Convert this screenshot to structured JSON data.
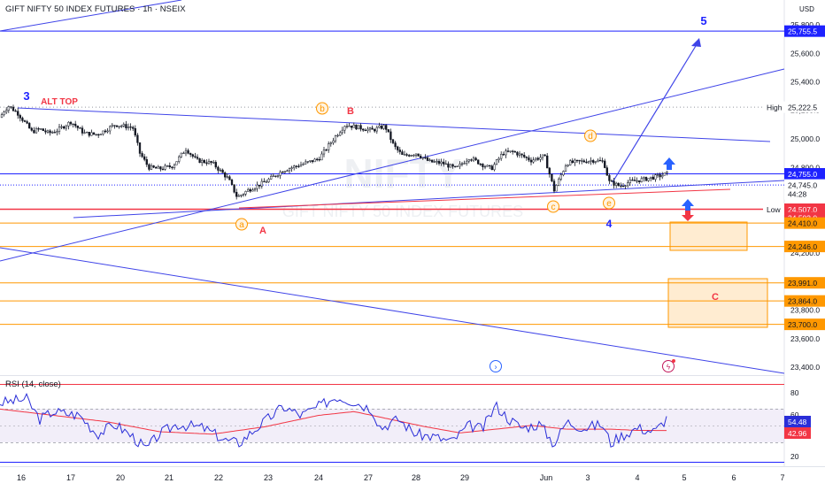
{
  "header": {
    "title": "GIFT NIFTY 50 INDEX FUTURES · 1h · NSEIX",
    "currency": "USD",
    "watermark": "NIFTY",
    "watermark_sub": "GIFT NIFTY 50 INDEX FUTURES"
  },
  "rsi": {
    "label": "RSI (14, close)",
    "value": 54.48,
    "ma_value": 42.96,
    "levels": [
      80,
      60,
      40,
      20
    ],
    "band": [
      30,
      70
    ]
  },
  "chart_data": {
    "type": "candlestick",
    "x_axis": {
      "ticks": [
        "16",
        "17",
        "20",
        "21",
        "22",
        "23",
        "24",
        "27",
        "28",
        "29",
        "Jun",
        "3",
        "4",
        "5",
        "6",
        "7"
      ]
    },
    "y_axis": {
      "range": [
        23300,
        25900
      ],
      "ticks": [
        "25,800.0",
        "25,600.0",
        "25,400.0",
        "25,200.0",
        "25,000.0",
        "24,800.0",
        "24,600.0",
        "24,400.0",
        "24,200.0",
        "24,000.0",
        "23,800.0",
        "23,600.0",
        "23,400.0"
      ]
    },
    "price_path": [
      [
        0,
        25150
      ],
      [
        5,
        25200
      ],
      [
        10,
        25230
      ],
      [
        20,
        25180
      ],
      [
        30,
        25100
      ],
      [
        36,
        25050
      ],
      [
        45,
        25070
      ],
      [
        55,
        25040
      ],
      [
        65,
        25060
      ],
      [
        80,
        25120
      ],
      [
        95,
        25040
      ],
      [
        110,
        25030
      ],
      [
        130,
        25100
      ],
      [
        150,
        25080
      ],
      [
        158,
        24900
      ],
      [
        168,
        24800
      ],
      [
        180,
        24790
      ],
      [
        195,
        24810
      ],
      [
        210,
        24930
      ],
      [
        222,
        24850
      ],
      [
        240,
        24830
      ],
      [
        258,
        24720
      ],
      [
        268,
        24590
      ],
      [
        280,
        24640
      ],
      [
        300,
        24700
      ],
      [
        320,
        24780
      ],
      [
        340,
        24820
      ],
      [
        360,
        24860
      ],
      [
        378,
        25010
      ],
      [
        390,
        25100
      ],
      [
        405,
        25080
      ],
      [
        420,
        25060
      ],
      [
        435,
        25090
      ],
      [
        445,
        24950
      ],
      [
        455,
        24880
      ],
      [
        470,
        24900
      ],
      [
        485,
        24840
      ],
      [
        500,
        24830
      ],
      [
        515,
        24790
      ],
      [
        530,
        24870
      ],
      [
        545,
        24820
      ],
      [
        555,
        24790
      ],
      [
        568,
        24900
      ],
      [
        580,
        24910
      ],
      [
        600,
        24850
      ],
      [
        615,
        24880
      ],
      [
        626,
        24640
      ],
      [
        640,
        24830
      ],
      [
        655,
        24840
      ],
      [
        670,
        24850
      ],
      [
        682,
        24840
      ],
      [
        688,
        24700
      ],
      [
        700,
        24670
      ],
      [
        712,
        24700
      ],
      [
        730,
        24720
      ],
      [
        745,
        24740
      ],
      [
        755,
        24760
      ]
    ],
    "levels": [
      {
        "price": 25755.5,
        "label": "25,755.5",
        "color": "#1e22ff",
        "style": "solid"
      },
      {
        "price": 25222.5,
        "label": "25,222.5",
        "color": "#9598a1",
        "style": "dotted",
        "tag": "High"
      },
      {
        "price": 24755.0,
        "label": "24,755.0",
        "color": "#1e22ff",
        "style": "solid"
      },
      {
        "price": 24507.0,
        "label": "24,507.0",
        "color": "#f23645",
        "style": "solid",
        "tag": "Low"
      },
      {
        "price": 24503.0,
        "label": "24,503.0",
        "color": "#f23645",
        "style": "none"
      },
      {
        "price": 24410.0,
        "label": "24,410.0",
        "color": "#ff9800",
        "style": "solid"
      },
      {
        "price": 24246.0,
        "label": "24,246.0",
        "color": "#ff9800",
        "style": "solid"
      },
      {
        "price": 23991.0,
        "label": "23,991.0",
        "color": "#ff9800",
        "style": "solid"
      },
      {
        "price": 23864.0,
        "label": "23,864.0",
        "color": "#ff9800",
        "style": "solid"
      },
      {
        "price": 23700.0,
        "label": "23,700.0",
        "color": "#ff9800",
        "style": "solid"
      }
    ],
    "last_price": {
      "price": 24745.0,
      "label": "24,745.0",
      "countdown": "44:28"
    },
    "annotations": [
      {
        "text": "3",
        "color": "#1e22ff"
      },
      {
        "text": "ALT TOP",
        "color": "#f23645"
      },
      {
        "text": "5",
        "color": "#1e22ff"
      },
      {
        "text": "b",
        "color": "#ff9800",
        "circled": true
      },
      {
        "text": "B",
        "color": "#f23645"
      },
      {
        "text": "d",
        "color": "#ff9800",
        "circled": true
      },
      {
        "text": "a",
        "color": "#ff9800",
        "circled": true
      },
      {
        "text": "A",
        "color": "#f23645"
      },
      {
        "text": "c",
        "color": "#ff9800",
        "circled": true
      },
      {
        "text": "e",
        "color": "#ff9800",
        "circled": true
      },
      {
        "text": "4",
        "color": "#1e22ff"
      },
      {
        "text": "C",
        "color": "#f23645"
      }
    ]
  }
}
